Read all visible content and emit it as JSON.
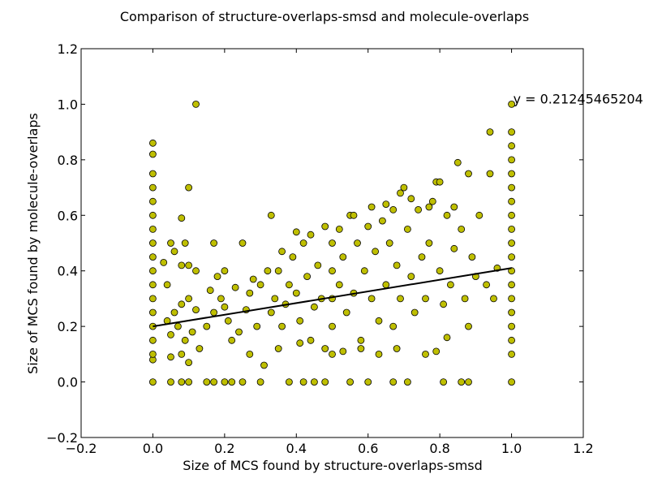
{
  "chart_data": {
    "type": "scatter",
    "title": "Comparison of structure-overlaps-smsd and molecule-overlaps",
    "xlabel": "Size of MCS found by structure-overlaps-smsd",
    "ylabel": "Size of MCS found by molecule-overlaps",
    "xlim": [
      -0.2,
      1.2
    ],
    "ylim": [
      -0.2,
      1.2
    ],
    "xticks": [
      "−0.2",
      "0.0",
      "0.2",
      "0.4",
      "0.6",
      "0.8",
      "1.0",
      "1.2"
    ],
    "yticks": [
      "−0.2",
      "0.0",
      "0.2",
      "0.4",
      "0.6",
      "0.8",
      "1.0",
      "1.2"
    ],
    "grid": false,
    "marker_color": "#bfbf00",
    "marker_edge": "#000000",
    "fit_line": {
      "x": [
        0.0,
        1.0
      ],
      "y": [
        0.2,
        0.41
      ],
      "color": "#000000",
      "label": "y = 0.21245465204"
    },
    "series": [
      {
        "points": [
          [
            0.0,
            0.0
          ],
          [
            0.0,
            0.08
          ],
          [
            0.0,
            0.1
          ],
          [
            0.0,
            0.15
          ],
          [
            0.0,
            0.2
          ],
          [
            0.0,
            0.25
          ],
          [
            0.0,
            0.3
          ],
          [
            0.0,
            0.35
          ],
          [
            0.0,
            0.4
          ],
          [
            0.0,
            0.45
          ],
          [
            0.0,
            0.5
          ],
          [
            0.0,
            0.55
          ],
          [
            0.0,
            0.6
          ],
          [
            0.0,
            0.65
          ],
          [
            0.0,
            0.7
          ],
          [
            0.0,
            0.75
          ],
          [
            0.0,
            0.82
          ],
          [
            0.0,
            0.86
          ],
          [
            1.0,
            0.0
          ],
          [
            1.0,
            0.1
          ],
          [
            1.0,
            0.15
          ],
          [
            1.0,
            0.2
          ],
          [
            1.0,
            0.25
          ],
          [
            1.0,
            0.3
          ],
          [
            1.0,
            0.35
          ],
          [
            1.0,
            0.4
          ],
          [
            1.0,
            0.45
          ],
          [
            1.0,
            0.5
          ],
          [
            1.0,
            0.55
          ],
          [
            1.0,
            0.6
          ],
          [
            1.0,
            0.65
          ],
          [
            1.0,
            0.7
          ],
          [
            1.0,
            0.75
          ],
          [
            1.0,
            0.8
          ],
          [
            1.0,
            0.85
          ],
          [
            1.0,
            0.9
          ],
          [
            1.0,
            1.0
          ],
          [
            0.05,
            0.0
          ],
          [
            0.08,
            0.0
          ],
          [
            0.1,
            0.0
          ],
          [
            0.15,
            0.0
          ],
          [
            0.17,
            0.0
          ],
          [
            0.2,
            0.0
          ],
          [
            0.22,
            0.0
          ],
          [
            0.25,
            0.0
          ],
          [
            0.3,
            0.0
          ],
          [
            0.38,
            0.0
          ],
          [
            0.42,
            0.0
          ],
          [
            0.45,
            0.0
          ],
          [
            0.48,
            0.0
          ],
          [
            0.55,
            0.0
          ],
          [
            0.6,
            0.0
          ],
          [
            0.67,
            0.0
          ],
          [
            0.71,
            0.0
          ],
          [
            0.81,
            0.0
          ],
          [
            0.86,
            0.0
          ],
          [
            0.88,
            0.0
          ],
          [
            0.12,
            1.0
          ],
          [
            0.1,
            0.7
          ],
          [
            0.08,
            0.59
          ],
          [
            0.05,
            0.5
          ],
          [
            0.09,
            0.5
          ],
          [
            0.06,
            0.47
          ],
          [
            0.03,
            0.43
          ],
          [
            0.04,
            0.35
          ],
          [
            0.08,
            0.42
          ],
          [
            0.1,
            0.42
          ],
          [
            0.12,
            0.4
          ],
          [
            0.04,
            0.22
          ],
          [
            0.06,
            0.25
          ],
          [
            0.08,
            0.28
          ],
          [
            0.1,
            0.3
          ],
          [
            0.12,
            0.26
          ],
          [
            0.05,
            0.17
          ],
          [
            0.07,
            0.2
          ],
          [
            0.09,
            0.15
          ],
          [
            0.11,
            0.18
          ],
          [
            0.13,
            0.12
          ],
          [
            0.05,
            0.09
          ],
          [
            0.08,
            0.1
          ],
          [
            0.1,
            0.07
          ],
          [
            0.15,
            0.2
          ],
          [
            0.17,
            0.25
          ],
          [
            0.19,
            0.3
          ],
          [
            0.21,
            0.22
          ],
          [
            0.16,
            0.33
          ],
          [
            0.18,
            0.38
          ],
          [
            0.2,
            0.27
          ],
          [
            0.17,
            0.5
          ],
          [
            0.25,
            0.5
          ],
          [
            0.22,
            0.15
          ],
          [
            0.24,
            0.18
          ],
          [
            0.26,
            0.26
          ],
          [
            0.27,
            0.32
          ],
          [
            0.29,
            0.2
          ],
          [
            0.3,
            0.35
          ],
          [
            0.31,
            0.06
          ],
          [
            0.33,
            0.25
          ],
          [
            0.34,
            0.3
          ],
          [
            0.35,
            0.4
          ],
          [
            0.36,
            0.2
          ],
          [
            0.37,
            0.28
          ],
          [
            0.33,
            0.6
          ],
          [
            0.38,
            0.35
          ],
          [
            0.39,
            0.45
          ],
          [
            0.4,
            0.32
          ],
          [
            0.41,
            0.22
          ],
          [
            0.42,
            0.5
          ],
          [
            0.43,
            0.38
          ],
          [
            0.44,
            0.15
          ],
          [
            0.45,
            0.27
          ],
          [
            0.46,
            0.42
          ],
          [
            0.47,
            0.3
          ],
          [
            0.5,
            0.2
          ],
          [
            0.5,
            0.3
          ],
          [
            0.5,
            0.4
          ],
          [
            0.5,
            0.5
          ],
          [
            0.5,
            0.1
          ],
          [
            0.52,
            0.35
          ],
          [
            0.53,
            0.45
          ],
          [
            0.54,
            0.25
          ],
          [
            0.55,
            0.6
          ],
          [
            0.56,
            0.32
          ],
          [
            0.57,
            0.5
          ],
          [
            0.58,
            0.15
          ],
          [
            0.59,
            0.4
          ],
          [
            0.6,
            0.56
          ],
          [
            0.61,
            0.3
          ],
          [
            0.62,
            0.47
          ],
          [
            0.63,
            0.22
          ],
          [
            0.64,
            0.58
          ],
          [
            0.65,
            0.35
          ],
          [
            0.66,
            0.5
          ],
          [
            0.67,
            0.62
          ],
          [
            0.67,
            0.2
          ],
          [
            0.68,
            0.42
          ],
          [
            0.69,
            0.3
          ],
          [
            0.7,
            0.7
          ],
          [
            0.71,
            0.55
          ],
          [
            0.72,
            0.38
          ],
          [
            0.73,
            0.25
          ],
          [
            0.74,
            0.62
          ],
          [
            0.75,
            0.45
          ],
          [
            0.76,
            0.3
          ],
          [
            0.77,
            0.5
          ],
          [
            0.78,
            0.65
          ],
          [
            0.79,
            0.72
          ],
          [
            0.8,
            0.4
          ],
          [
            0.81,
            0.28
          ],
          [
            0.82,
            0.6
          ],
          [
            0.83,
            0.35
          ],
          [
            0.84,
            0.48
          ],
          [
            0.85,
            0.79
          ],
          [
            0.86,
            0.55
          ],
          [
            0.87,
            0.3
          ],
          [
            0.88,
            0.75
          ],
          [
            0.89,
            0.45
          ],
          [
            0.9,
            0.38
          ],
          [
            0.91,
            0.6
          ],
          [
            0.93,
            0.35
          ],
          [
            0.94,
            0.9
          ],
          [
            0.94,
            0.75
          ],
          [
            0.95,
            0.3
          ],
          [
            0.96,
            0.41
          ],
          [
            0.27,
            0.1
          ],
          [
            0.35,
            0.12
          ],
          [
            0.41,
            0.14
          ],
          [
            0.48,
            0.12
          ],
          [
            0.53,
            0.11
          ],
          [
            0.58,
            0.12
          ],
          [
            0.63,
            0.1
          ],
          [
            0.68,
            0.12
          ],
          [
            0.76,
            0.1
          ],
          [
            0.79,
            0.11
          ],
          [
            0.82,
            0.16
          ],
          [
            0.88,
            0.2
          ],
          [
            0.2,
            0.4
          ],
          [
            0.23,
            0.34
          ],
          [
            0.28,
            0.37
          ],
          [
            0.32,
            0.4
          ],
          [
            0.36,
            0.47
          ],
          [
            0.4,
            0.54
          ],
          [
            0.44,
            0.53
          ],
          [
            0.48,
            0.56
          ],
          [
            0.52,
            0.55
          ],
          [
            0.56,
            0.6
          ],
          [
            0.61,
            0.63
          ],
          [
            0.65,
            0.64
          ],
          [
            0.69,
            0.68
          ],
          [
            0.72,
            0.66
          ],
          [
            0.77,
            0.63
          ],
          [
            0.8,
            0.72
          ],
          [
            0.84,
            0.63
          ]
        ]
      }
    ]
  }
}
